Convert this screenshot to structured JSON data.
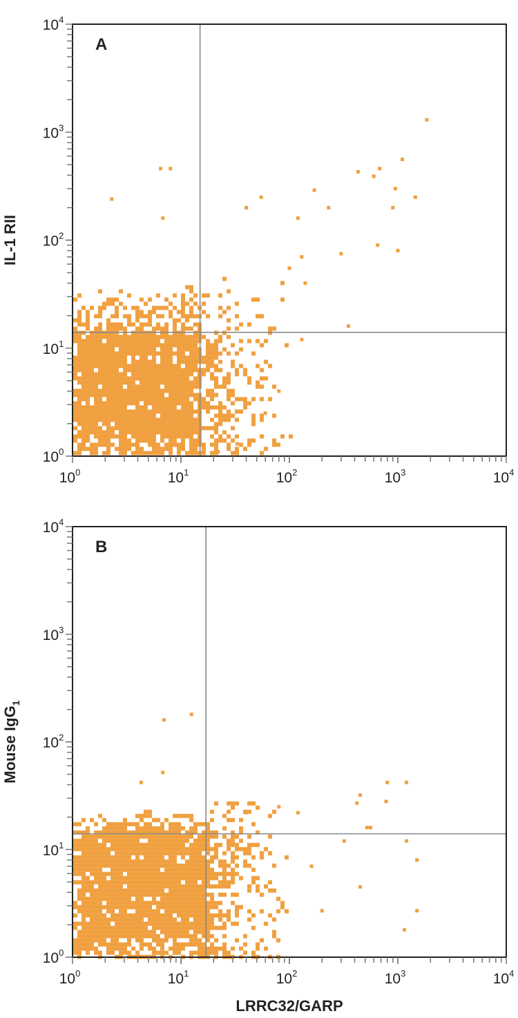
{
  "chart_data": [
    {
      "type": "scatter",
      "subtype": "flow-cytometry-dot-plot",
      "panel_label": "A",
      "xlabel": "LRRC32/GARP",
      "ylabel": "IL-1 RII",
      "xscale": "log",
      "yscale": "log",
      "xlim": [
        1,
        10000
      ],
      "ylim": [
        1,
        10000
      ],
      "x_tick_labels": [
        "10",
        "10",
        "10",
        "10",
        "10"
      ],
      "x_tick_exponents": [
        "0",
        "1",
        "2",
        "3",
        "4"
      ],
      "y_tick_labels": [
        "10",
        "10",
        "10",
        "10",
        "10"
      ],
      "y_tick_exponents": [
        "0",
        "1",
        "2",
        "3",
        "4"
      ],
      "quadrant_gate": {
        "x": 15,
        "y": 14
      },
      "dense_population": {
        "x_range": [
          1,
          15
        ],
        "y_range": [
          1,
          14
        ],
        "spread_to_y": 50,
        "spread_to_x": 120
      },
      "sparse_points": [
        [
          1850,
          1300
        ],
        [
          1100,
          560
        ],
        [
          680,
          460
        ],
        [
          430,
          430
        ],
        [
          600,
          390
        ],
        [
          950,
          300
        ],
        [
          900,
          200
        ],
        [
          1450,
          250
        ],
        [
          170,
          290
        ],
        [
          230,
          200
        ],
        [
          120,
          160
        ],
        [
          55,
          250
        ],
        [
          40,
          200
        ],
        [
          6.5,
          460
        ],
        [
          8,
          460
        ],
        [
          2.3,
          240
        ],
        [
          6.8,
          160
        ],
        [
          650,
          90
        ],
        [
          300,
          75
        ],
        [
          1000,
          80
        ],
        [
          350,
          16
        ],
        [
          130,
          70
        ],
        [
          100,
          55
        ],
        [
          140,
          40
        ],
        [
          130,
          12
        ],
        [
          80,
          4
        ],
        [
          60,
          2.5
        ],
        [
          33,
          1.3
        ],
        [
          22,
          1.1
        ]
      ],
      "color": "#F0A040"
    },
    {
      "type": "scatter",
      "subtype": "flow-cytometry-dot-plot",
      "panel_label": "B",
      "xlabel": "LRRC32/GARP",
      "ylabel": "Mouse IgG",
      "ylabel_subscript": "1",
      "xscale": "log",
      "yscale": "log",
      "xlim": [
        1,
        10000
      ],
      "ylim": [
        1,
        10000
      ],
      "x_tick_labels": [
        "10",
        "10",
        "10",
        "10",
        "10"
      ],
      "x_tick_exponents": [
        "0",
        "1",
        "2",
        "3",
        "4"
      ],
      "y_tick_labels": [
        "10",
        "10",
        "10",
        "10",
        "10"
      ],
      "y_tick_exponents": [
        "0",
        "1",
        "2",
        "3",
        "4"
      ],
      "quadrant_gate": {
        "x": 17,
        "y": 14
      },
      "dense_population": {
        "x_range": [
          1,
          17
        ],
        "y_range": [
          1,
          16
        ],
        "spread_to_y": 28,
        "spread_to_x": 130
      },
      "sparse_points": [
        [
          7,
          160
        ],
        [
          12.5,
          180
        ],
        [
          4.3,
          42
        ],
        [
          6.8,
          52
        ],
        [
          800,
          42
        ],
        [
          1200,
          42
        ],
        [
          450,
          32
        ],
        [
          420,
          27
        ],
        [
          780,
          28
        ],
        [
          520,
          16
        ],
        [
          560,
          16
        ],
        [
          1200,
          12
        ],
        [
          320,
          12
        ],
        [
          1500,
          8
        ],
        [
          450,
          4.5
        ],
        [
          1500,
          2.7
        ],
        [
          1150,
          1.8
        ],
        [
          200,
          2.7
        ],
        [
          160,
          7
        ],
        [
          120,
          22
        ],
        [
          80,
          25
        ],
        [
          40,
          22
        ]
      ],
      "color": "#F0A040"
    }
  ]
}
